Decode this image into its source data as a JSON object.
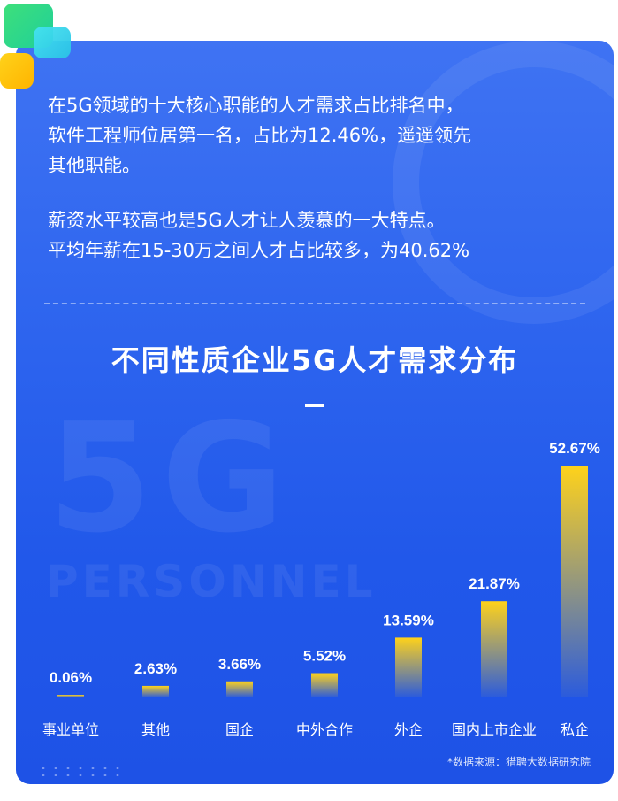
{
  "intro": {
    "paragraph1": "在5G领域的十大核心职能的人才需求占比排名中，\n软件工程师位居第一名，占比为12.46%，遥遥领先\n其他职能。",
    "paragraph2": "薪资水平较高也是5G人才让人羡慕的一大特点。\n平均年薪在15-30万之间人才占比较多，为40.62%"
  },
  "watermark": {
    "big": "5G",
    "small": "PERSONNEL"
  },
  "colors": {
    "background": "#2f66ef",
    "bar_top": "#ffd21a",
    "bar_bottom": "#2d63ee",
    "text": "#ffffff"
  },
  "chart_data": {
    "type": "bar",
    "title": "不同性质企业5G人才需求分布",
    "xlabel": "",
    "ylabel": "",
    "categories": [
      "事业单位",
      "其他",
      "国企",
      "中外合作",
      "外企",
      "国内上市企业",
      "私企"
    ],
    "values": [
      0.06,
      2.63,
      3.66,
      5.52,
      13.59,
      21.87,
      52.67
    ],
    "value_labels": [
      "0.06%",
      "2.63%",
      "3.66%",
      "5.52%",
      "13.59%",
      "21.87%",
      "52.67%"
    ],
    "unit": "%",
    "ylim": [
      0,
      52.67
    ],
    "grid": false,
    "legend": "none"
  },
  "source": "*数据来源：猎聘大数据研究院"
}
